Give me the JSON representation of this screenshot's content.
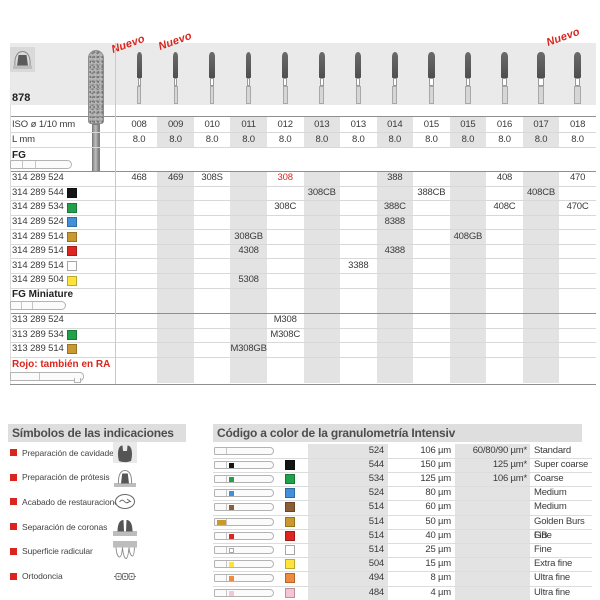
{
  "page": {
    "model": "878"
  },
  "top_table": {
    "nuevo_label": "Nuevo",
    "nuevo_columns": [
      0,
      1,
      12
    ],
    "iso_label": "ISO ø 1/10 mm",
    "l_label": "L mm",
    "fg_label": "FG",
    "fg_mini_label": "FG Miniature",
    "rojo_note": "Rojo: también en RA",
    "columns": [
      {
        "iso": "008",
        "l": "8.0"
      },
      {
        "iso": "009",
        "l": "8.0"
      },
      {
        "iso": "010",
        "l": "8.0"
      },
      {
        "iso": "011",
        "l": "8.0"
      },
      {
        "iso": "012",
        "l": "8.0"
      },
      {
        "iso": "013",
        "l": "8.0"
      },
      {
        "iso": "013",
        "l": "8.0"
      },
      {
        "iso": "014",
        "l": "8.0"
      },
      {
        "iso": "015",
        "l": "8.0"
      },
      {
        "iso": "015",
        "l": "8.0"
      },
      {
        "iso": "016",
        "l": "8.0"
      },
      {
        "iso": "017",
        "l": "8.0"
      },
      {
        "iso": "018",
        "l": "8.0"
      }
    ],
    "fg_rows": [
      {
        "code": "314 289 524",
        "color": null,
        "red_cols": [
          4
        ],
        "cells": [
          "468",
          "469",
          "308S",
          "",
          "308",
          "",
          "",
          "388",
          "",
          "",
          "408",
          "",
          "470"
        ]
      },
      {
        "code": "314 289 544",
        "color": "black",
        "cells": [
          "",
          "",
          "",
          "",
          "",
          "308CB",
          "",
          "",
          "388CB",
          "",
          "",
          "408CB",
          ""
        ]
      },
      {
        "code": "314 289 534",
        "color": "green",
        "cells": [
          "",
          "",
          "",
          "",
          "308C",
          "",
          "",
          "388C",
          "",
          "",
          "408C",
          "",
          "470C"
        ]
      },
      {
        "code": "314 289 524",
        "color": "blue",
        "cells": [
          "",
          "",
          "",
          "",
          "",
          "",
          "",
          "8388",
          "",
          "",
          "",
          "",
          ""
        ]
      },
      {
        "code": "314 289 514",
        "color": "gold",
        "cells": [
          "",
          "",
          "",
          "308GB",
          "",
          "",
          "",
          "",
          "",
          "408GB",
          "",
          "",
          ""
        ]
      },
      {
        "code": "314 289 514",
        "color": "red",
        "cells": [
          "",
          "",
          "",
          "4308",
          "",
          "",
          "",
          "4388",
          "",
          "",
          "",
          "",
          ""
        ]
      },
      {
        "code": "314 289 514",
        "color": "white",
        "cells": [
          "",
          "",
          "",
          "",
          "",
          "",
          "3388",
          "",
          "",
          "",
          "",
          "",
          ""
        ]
      },
      {
        "code": "314 289 504",
        "color": "yellow",
        "cells": [
          "",
          "",
          "",
          "5308",
          "",
          "",
          "",
          "",
          "",
          "",
          "",
          "",
          ""
        ]
      }
    ],
    "mini_rows": [
      {
        "code": "313 289 524",
        "color": null,
        "cells": [
          "",
          "",
          "",
          "",
          "M308",
          "",
          "",
          "",
          "",
          "",
          "",
          "",
          ""
        ]
      },
      {
        "code": "313 289 534",
        "color": "green",
        "cells": [
          "",
          "",
          "",
          "",
          "M308C",
          "",
          "",
          "",
          "",
          "",
          "",
          "",
          ""
        ]
      },
      {
        "code": "313 289 514",
        "color": "gold",
        "cells": [
          "",
          "",
          "",
          "M308GB",
          "",
          "",
          "",
          "",
          "",
          "",
          "",
          "",
          ""
        ]
      }
    ]
  },
  "colors": {
    "black": "#141414",
    "green": "#22a14b",
    "blue": "#4190d9",
    "gold": "#c9992f",
    "red": "#de2620",
    "white": "#ffffff",
    "yellow": "#fde33c",
    "brown": "#8a5f35",
    "orange": "#f08a3c",
    "pink": "#f6c5d3"
  },
  "symbols_panel": {
    "title": "Símbolos de las indicaciones",
    "items": [
      {
        "label": "Preparación de cavidades",
        "icon": "cavity-prep-icon"
      },
      {
        "label": "Preparación de prótesis",
        "icon": "prosthesis-prep-icon"
      },
      {
        "label": "Acabado de restauraciones",
        "icon": "restoration-finishing-icon"
      },
      {
        "label": "Separación de coronas",
        "icon": "crown-separation-icon"
      },
      {
        "label": "Superficie radicular",
        "icon": "root-surface-icon"
      },
      {
        "label": "Ortodoncia",
        "icon": "orthodontics-icon"
      }
    ]
  },
  "granulometry_panel": {
    "title": "Código a color de la granulometría Intensiv",
    "rows": [
      {
        "color": null,
        "code": "524",
        "grit": "106 µm",
        "alt": "60/80/90 µm*",
        "name": "Standard"
      },
      {
        "color": "black",
        "code": "544",
        "grit": "150 µm",
        "alt": "125 µm*",
        "name": "Super coarse"
      },
      {
        "color": "green",
        "code": "534",
        "grit": "125 µm",
        "alt": "106 µm*",
        "name": "Coarse"
      },
      {
        "color": "blue",
        "code": "524",
        "grit": "80 µm",
        "alt": "",
        "name": "Medium"
      },
      {
        "color": "brown",
        "code": "514",
        "grit": "60 µm",
        "alt": "",
        "name": "Medium"
      },
      {
        "color": "gold",
        "code": "514",
        "grit": "50 µm",
        "alt": "",
        "name": "Golden Burs GB"
      },
      {
        "color": "red",
        "code": "514",
        "grit": "40 µm",
        "alt": "",
        "name": "Fine"
      },
      {
        "color": "white",
        "code": "514",
        "grit": "25 µm",
        "alt": "",
        "name": "Fine"
      },
      {
        "color": "yellow",
        "code": "504",
        "grit": "15 µm",
        "alt": "",
        "name": "Extra fine"
      },
      {
        "color": "orange",
        "code": "494",
        "grit": "8 µm",
        "alt": "",
        "name": "Ultra fine"
      },
      {
        "color": "pink",
        "code": "484",
        "grit": "4 µm",
        "alt": "",
        "name": "Ultra fine"
      }
    ]
  }
}
